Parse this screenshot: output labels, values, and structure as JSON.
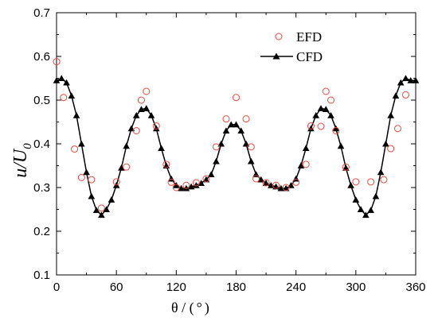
{
  "chart_data": {
    "type": "scatter",
    "xlabel_main": "θ / (",
    "xlabel_unit": "°",
    "xlabel_close": ")",
    "ylabel_main": "u/U",
    "ylabel_sub": "0",
    "xlim": [
      0,
      360
    ],
    "ylim": [
      0.1,
      0.7
    ],
    "xticks": [
      0,
      60,
      120,
      180,
      240,
      300,
      360
    ],
    "yticks": [
      0.1,
      0.2,
      0.3,
      0.4,
      0.5,
      0.6,
      0.7
    ],
    "xtick_labels": [
      "0",
      "60",
      "120",
      "180",
      "240",
      "300",
      "360"
    ],
    "ytick_labels": [
      "0.1",
      "0.2",
      "0.3",
      "0.4",
      "0.5",
      "0.6",
      "0.7"
    ],
    "legend_position": "top-right",
    "series": [
      {
        "name": "EFD",
        "marker": "open-circle",
        "color": "#e8473f",
        "x": [
          0,
          7,
          18,
          25,
          35,
          45,
          60,
          70,
          80,
          85,
          90,
          100,
          110,
          115,
          120,
          130,
          140,
          150,
          160,
          170,
          180,
          190,
          195,
          200,
          210,
          220,
          230,
          240,
          250,
          255,
          265,
          270,
          275,
          280,
          290,
          300,
          315,
          328,
          335,
          342,
          350
        ],
        "y": [
          0.588,
          0.506,
          0.388,
          0.323,
          0.318,
          0.253,
          0.313,
          0.347,
          0.43,
          0.5,
          0.52,
          0.441,
          0.353,
          0.312,
          0.3,
          0.305,
          0.311,
          0.32,
          0.393,
          0.457,
          0.506,
          0.457,
          0.393,
          0.32,
          0.311,
          0.305,
          0.3,
          0.312,
          0.353,
          0.441,
          0.44,
          0.52,
          0.5,
          0.43,
          0.347,
          0.313,
          0.313,
          0.318,
          0.389,
          0.435,
          0.512
        ]
      },
      {
        "name": "CFD",
        "marker": "filled-triangle-line",
        "color": "#000000",
        "x": [
          0,
          5,
          10,
          15,
          20,
          25,
          30,
          35,
          40,
          45,
          50,
          55,
          60,
          65,
          70,
          75,
          80,
          85,
          90,
          95,
          100,
          105,
          110,
          115,
          120,
          125,
          130,
          135,
          140,
          145,
          150,
          155,
          160,
          165,
          170,
          175,
          180,
          185,
          190,
          195,
          200,
          205,
          210,
          215,
          220,
          225,
          230,
          235,
          240,
          245,
          250,
          255,
          260,
          265,
          270,
          275,
          280,
          285,
          290,
          295,
          300,
          305,
          310,
          315,
          320,
          325,
          330,
          335,
          340,
          345,
          350,
          355,
          360
        ],
        "y": [
          0.545,
          0.55,
          0.54,
          0.51,
          0.465,
          0.4,
          0.335,
          0.28,
          0.248,
          0.237,
          0.25,
          0.272,
          0.305,
          0.345,
          0.395,
          0.435,
          0.465,
          0.479,
          0.481,
          0.465,
          0.435,
          0.39,
          0.35,
          0.32,
          0.305,
          0.298,
          0.298,
          0.302,
          0.305,
          0.31,
          0.318,
          0.33,
          0.36,
          0.4,
          0.43,
          0.444,
          0.444,
          0.43,
          0.4,
          0.36,
          0.33,
          0.318,
          0.31,
          0.305,
          0.302,
          0.298,
          0.298,
          0.305,
          0.32,
          0.35,
          0.39,
          0.435,
          0.465,
          0.481,
          0.479,
          0.465,
          0.435,
          0.395,
          0.345,
          0.305,
          0.272,
          0.25,
          0.237,
          0.248,
          0.28,
          0.335,
          0.4,
          0.465,
          0.51,
          0.54,
          0.55,
          0.545,
          0.545
        ]
      }
    ]
  }
}
